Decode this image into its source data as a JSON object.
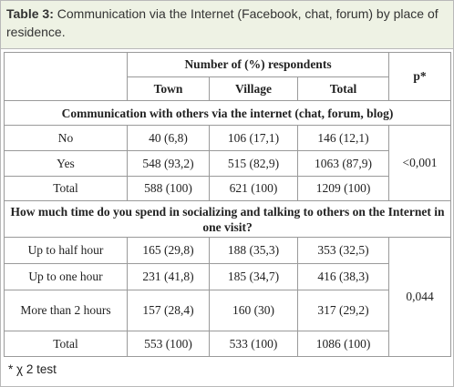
{
  "caption": {
    "label": "Table 3:",
    "text": "Communication via the Internet (Facebook, chat, forum) by place of residence."
  },
  "header": {
    "group": "Number of (%) respondents",
    "p": "p*",
    "columns": [
      "Town",
      "Village",
      "Total"
    ]
  },
  "sections": [
    {
      "title": "Communication with others via the internet (chat, forum, blog)",
      "p": "<0,001",
      "rows": [
        [
          "No",
          "40 (6,8)",
          "106 (17,1)",
          "146 (12,1)"
        ],
        [
          "Yes",
          "548 (93,2)",
          "515 (82,9)",
          "1063 (87,9)"
        ],
        [
          "Total",
          "588 (100)",
          "621 (100)",
          "1209 (100)"
        ]
      ]
    },
    {
      "title": "How much time do you spend in socializing and talking to others on the Internet in one visit?",
      "p": "0,044",
      "rows": [
        [
          "Up to half hour",
          "165 (29,8)",
          "188 (35,3)",
          "353 (32,5)"
        ],
        [
          "Up to one hour",
          "231 (41,8)",
          "185 (34,7)",
          "416 (38,3)"
        ],
        [
          "More than 2 hours",
          "157 (28,4)",
          "160 (30)",
          "317 (29,2)"
        ],
        [
          "Total",
          "553 (100)",
          "533 (100)",
          "1086 (100)"
        ]
      ]
    }
  ],
  "footnote": "* χ 2 test"
}
